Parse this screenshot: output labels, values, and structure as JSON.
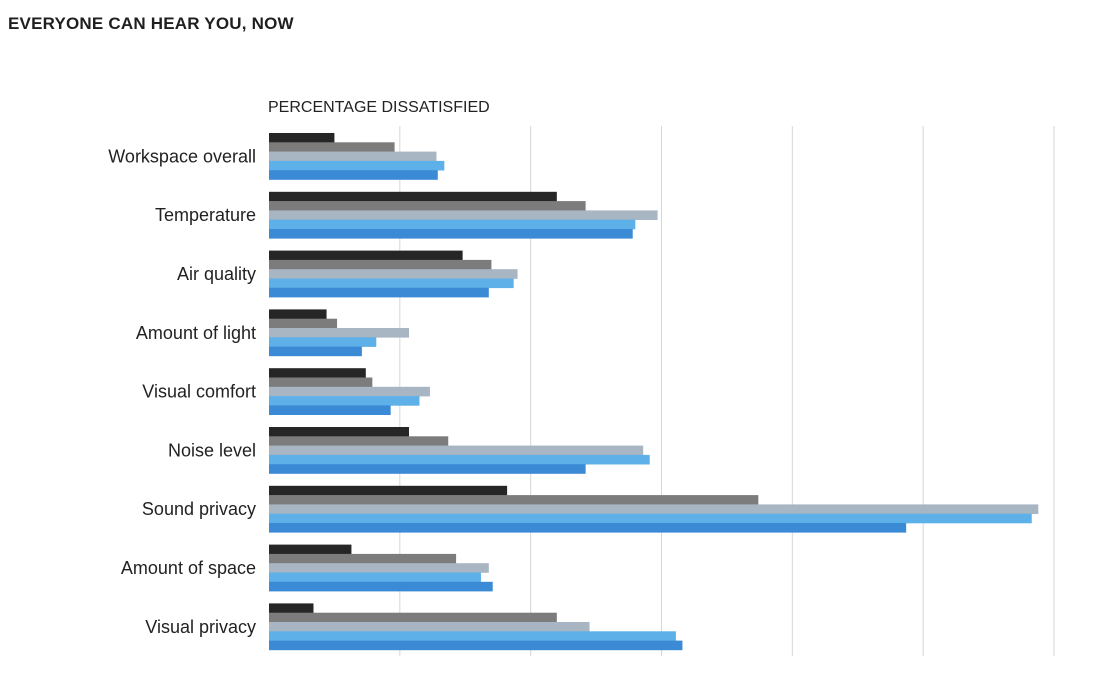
{
  "chart_data": {
    "type": "bar",
    "orientation": "horizontal",
    "title": "EVERYONE CAN HEAR YOU, NOW",
    "xlabel": "PERCENTAGE DISSATISFIED",
    "ylabel": "",
    "xlim": [
      0,
      60
    ],
    "grid": true,
    "categories": [
      "Workspace overall",
      "Temperature",
      "Air quality",
      "Amount of light",
      "Visual comfort",
      "Noise level",
      "Sound privacy",
      "Amount of space",
      "Visual privacy"
    ],
    "series": [
      {
        "color": "#262626",
        "values": [
          5.0,
          22.0,
          14.8,
          4.4,
          7.4,
          10.7,
          18.2,
          6.3,
          3.4
        ]
      },
      {
        "color": "#7c7c7c",
        "values": [
          9.6,
          24.2,
          17.0,
          5.2,
          7.9,
          13.7,
          37.4,
          14.3,
          22.0
        ]
      },
      {
        "color": "#a8b5c3",
        "values": [
          12.8,
          29.7,
          19.0,
          10.7,
          12.3,
          28.6,
          58.8,
          16.8,
          24.5
        ]
      },
      {
        "color": "#5db0e8",
        "values": [
          13.4,
          28.0,
          18.7,
          8.2,
          11.5,
          29.1,
          58.3,
          16.2,
          31.1
        ]
      },
      {
        "color": "#3a8ad6",
        "values": [
          12.9,
          27.8,
          16.8,
          7.1,
          9.3,
          24.2,
          48.7,
          17.1,
          31.6
        ]
      }
    ]
  }
}
